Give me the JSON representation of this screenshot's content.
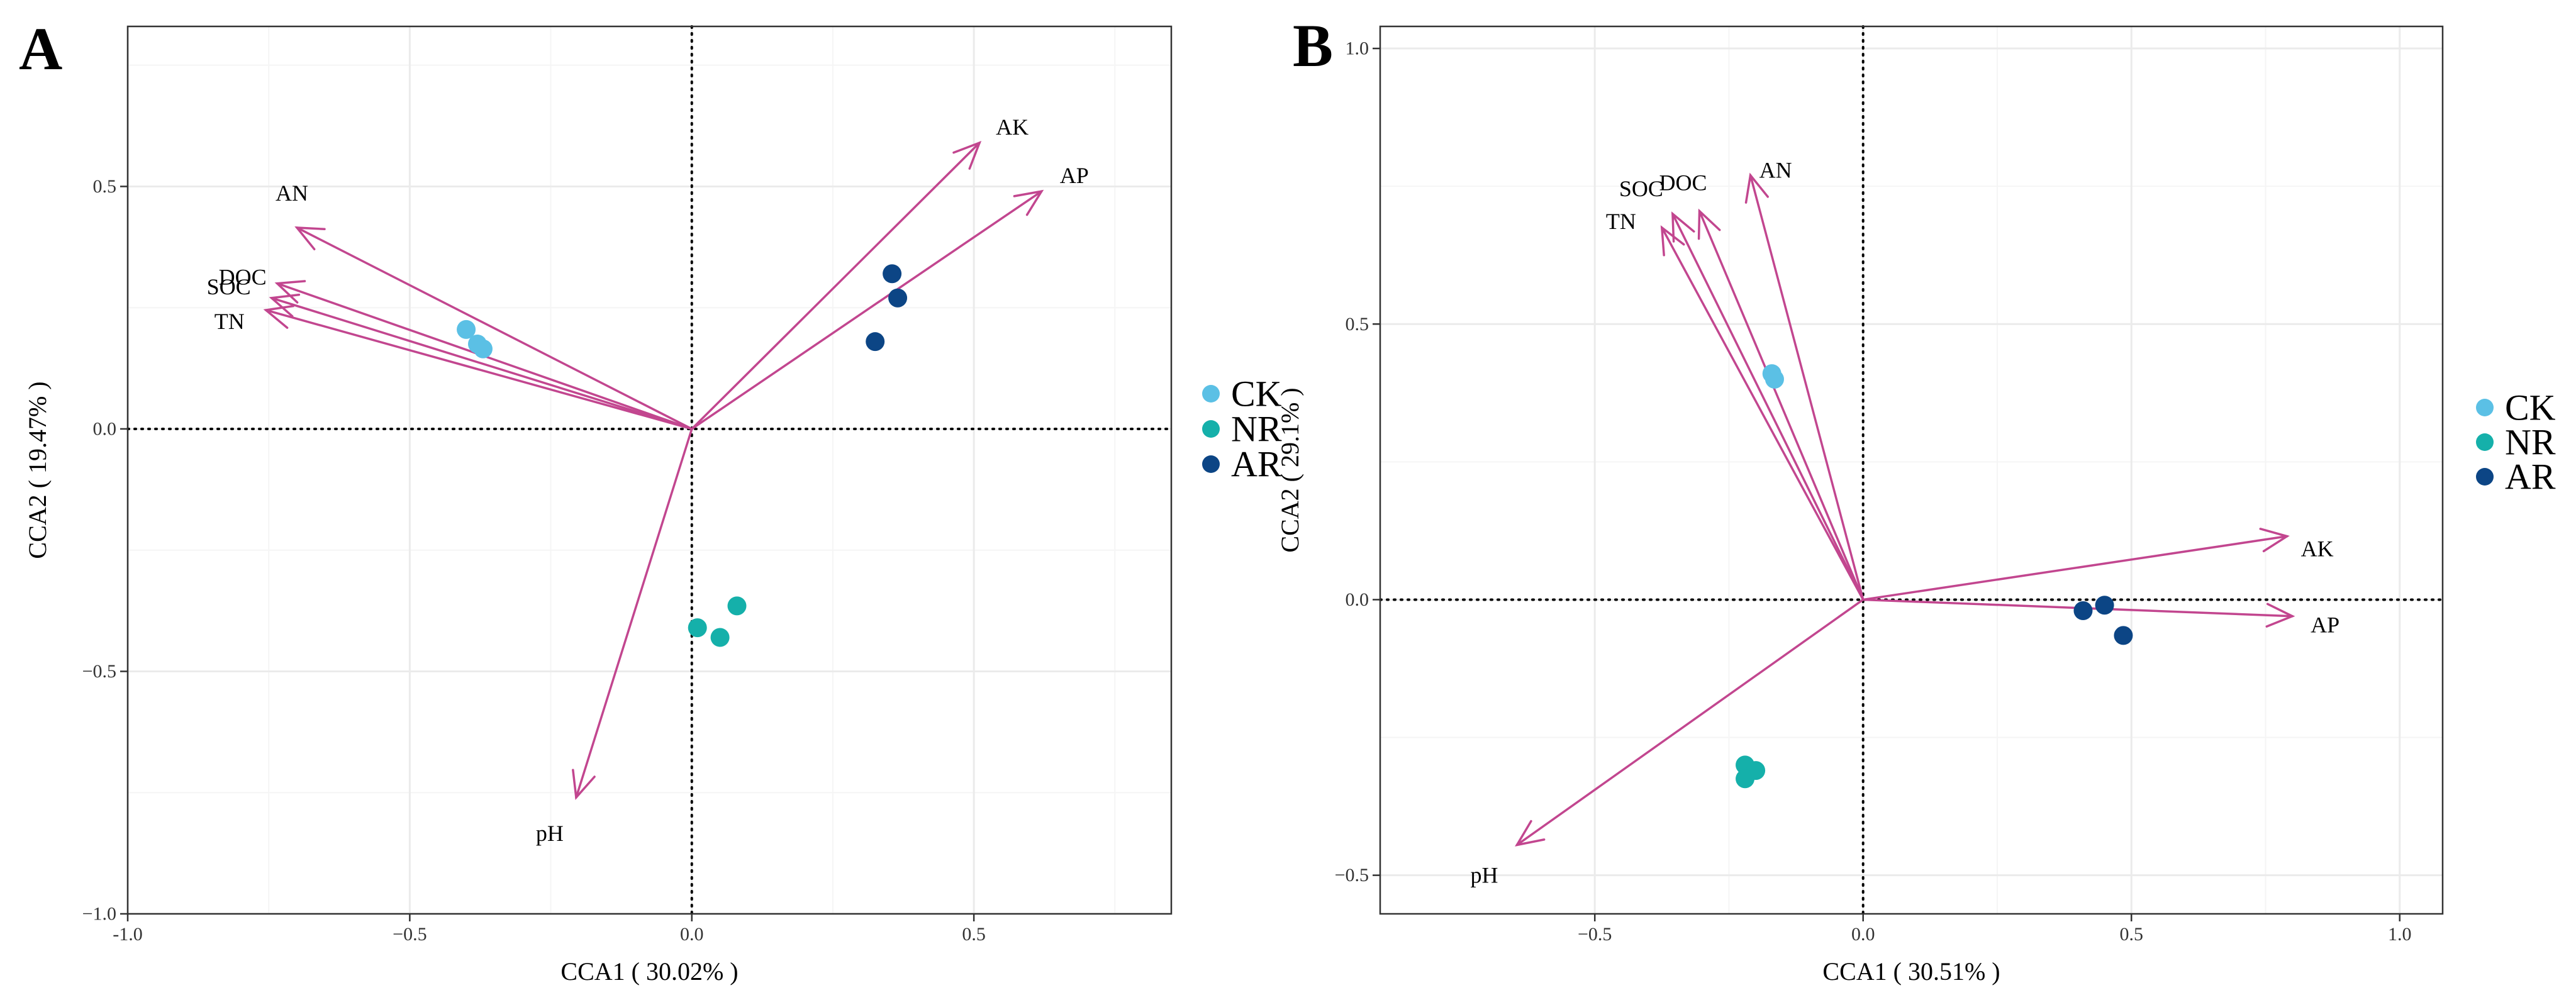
{
  "colors": {
    "arrow": "#c2468f",
    "CK": "#5bc0e5",
    "NR": "#15b0aa",
    "AR": "#0c4585"
  },
  "legend": {
    "items": [
      {
        "label": "CK",
        "color": "#5bc0e5"
      },
      {
        "label": "NR",
        "color": "#15b0aa"
      },
      {
        "label": "AR",
        "color": "#0c4585"
      }
    ]
  },
  "chart_data": [
    {
      "type": "scatter",
      "panel_label": "A",
      "xlabel": "CCA1 ( 30.02% )",
      "ylabel": "CCA2 ( 19.47% )",
      "xlim": [
        -1.0,
        0.85
      ],
      "ylim": [
        -1.0,
        0.83
      ],
      "xticks": [
        -1.0,
        -0.5,
        0.0,
        0.5
      ],
      "xtick_labels": [
        "-1.0",
        "−0.5",
        "0.0",
        "0.5"
      ],
      "yticks": [
        -1.0,
        -0.5,
        0.0,
        0.5
      ],
      "ytick_labels": [
        "−1.0",
        "−0.5",
        "0.0",
        "0.5"
      ],
      "grid": true,
      "vectors": [
        {
          "label": "AK",
          "x": 0.51,
          "y": 0.59
        },
        {
          "label": "AP",
          "x": 0.62,
          "y": 0.49
        },
        {
          "label": "AN",
          "x": -0.7,
          "y": 0.415
        },
        {
          "label": "DOC",
          "x": -0.735,
          "y": 0.3
        },
        {
          "label": "SOC",
          "x": -0.745,
          "y": 0.27
        },
        {
          "label": "TN",
          "x": -0.755,
          "y": 0.245
        },
        {
          "label": "pH",
          "x": -0.205,
          "y": -0.76
        }
      ],
      "series": [
        {
          "name": "CK",
          "points": [
            [
              -0.4,
              0.205
            ],
            [
              -0.38,
              0.175
            ],
            [
              -0.37,
              0.165
            ]
          ]
        },
        {
          "name": "NR",
          "points": [
            [
              0.01,
              -0.41
            ],
            [
              0.05,
              -0.43
            ],
            [
              0.08,
              -0.365
            ]
          ]
        },
        {
          "name": "AR",
          "points": [
            [
              0.355,
              0.32
            ],
            [
              0.365,
              0.27
            ],
            [
              0.325,
              0.18
            ]
          ]
        }
      ]
    },
    {
      "type": "scatter",
      "panel_label": "B",
      "xlabel": "CCA1 ( 30.51% )",
      "ylabel": "CCA2 ( 29.1% )",
      "xlim": [
        -0.9,
        1.08
      ],
      "ylim": [
        -0.57,
        1.04
      ],
      "xticks": [
        -0.5,
        0.0,
        0.5,
        1.0
      ],
      "xtick_labels": [
        "−0.5",
        "0.0",
        "0.5",
        "1.0"
      ],
      "yticks": [
        -0.5,
        0.0,
        0.5,
        1.0
      ],
      "ytick_labels": [
        "−0.5",
        "0.0",
        "0.5",
        "1.0"
      ],
      "grid": true,
      "vectors": [
        {
          "label": "AN",
          "x": -0.21,
          "y": 0.77
        },
        {
          "label": "DOC",
          "x": -0.305,
          "y": 0.705
        },
        {
          "label": "SOC",
          "x": -0.355,
          "y": 0.7
        },
        {
          "label": "TN",
          "x": -0.375,
          "y": 0.675
        },
        {
          "label": "AK",
          "x": 0.79,
          "y": 0.115
        },
        {
          "label": "AP",
          "x": 0.8,
          "y": -0.03
        },
        {
          "label": "pH",
          "x": -0.645,
          "y": -0.445
        }
      ],
      "series": [
        {
          "name": "CK",
          "points": [
            [
              -0.165,
              0.4
            ],
            [
              -0.17,
              0.41
            ]
          ]
        },
        {
          "name": "NR",
          "points": [
            [
              -0.22,
              -0.3
            ],
            [
              -0.2,
              -0.31
            ],
            [
              -0.22,
              -0.325
            ]
          ]
        },
        {
          "name": "AR",
          "points": [
            [
              0.41,
              -0.02
            ],
            [
              0.45,
              -0.01
            ],
            [
              0.485,
              -0.065
            ]
          ]
        }
      ]
    }
  ]
}
